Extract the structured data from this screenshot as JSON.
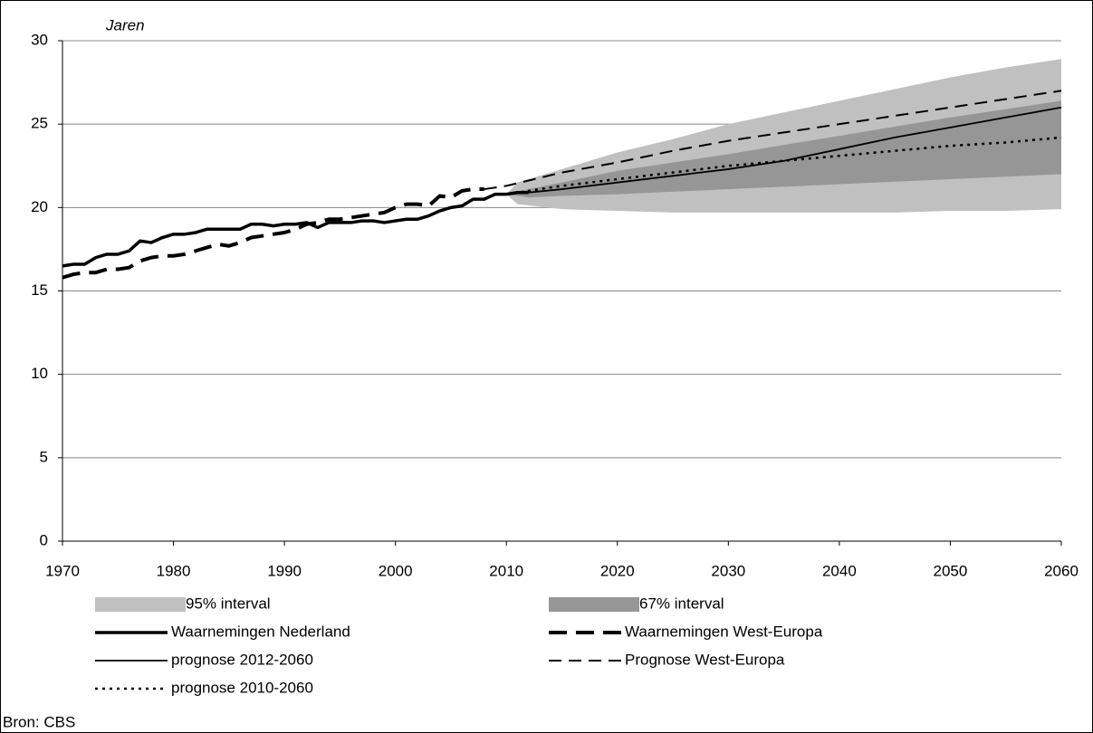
{
  "chart_data": {
    "type": "line",
    "y_axis_label": "Jaren",
    "source": "Bron: CBS",
    "xlim": [
      1970,
      2060
    ],
    "xticks": [
      1970,
      1980,
      1990,
      2000,
      2010,
      2020,
      2030,
      2040,
      2050,
      2060
    ],
    "ylim": [
      0,
      30
    ],
    "yticks": [
      0,
      5,
      10,
      15,
      20,
      25,
      30
    ],
    "grid": true,
    "series": [
      {
        "name": "95% interval",
        "kind": "band",
        "color": "#c0c0c0",
        "x": [
          2010,
          2011,
          2015,
          2020,
          2025,
          2030,
          2035,
          2040,
          2045,
          2050,
          2055,
          2060
        ],
        "lower": [
          20.8,
          20.2,
          19.9,
          19.8,
          19.7,
          19.7,
          19.7,
          19.7,
          19.7,
          19.8,
          19.8,
          19.9
        ],
        "upper": [
          20.8,
          21.5,
          22.3,
          23.3,
          24.1,
          25.0,
          25.7,
          26.4,
          27.1,
          27.8,
          28.4,
          28.9
        ]
      },
      {
        "name": "67% interval",
        "kind": "band",
        "color": "#969696",
        "x": [
          2010,
          2012,
          2015,
          2020,
          2030,
          2040,
          2050,
          2060
        ],
        "lower": [
          20.8,
          20.6,
          20.7,
          20.8,
          21.1,
          21.4,
          21.7,
          22.0
        ],
        "upper": [
          20.8,
          21.1,
          21.5,
          22.2,
          23.2,
          24.3,
          25.4,
          26.4
        ]
      },
      {
        "name": "Waarnemingen Nederland",
        "kind": "line",
        "color": "#000000",
        "line_style": "solid",
        "line_width": 3.5,
        "x": [
          1970,
          1971,
          1972,
          1973,
          1974,
          1975,
          1976,
          1977,
          1978,
          1979,
          1980,
          1981,
          1982,
          1983,
          1984,
          1985,
          1986,
          1987,
          1988,
          1989,
          1990,
          1991,
          1992,
          1993,
          1994,
          1995,
          1996,
          1997,
          1998,
          1999,
          2000,
          2001,
          2002,
          2003,
          2004,
          2005,
          2006,
          2007,
          2008,
          2009,
          2010,
          2011,
          2012
        ],
        "values": [
          16.5,
          16.6,
          16.6,
          17.0,
          17.2,
          17.2,
          17.4,
          18.0,
          17.9,
          18.2,
          18.4,
          18.4,
          18.5,
          18.7,
          18.7,
          18.7,
          18.7,
          19.0,
          19.0,
          18.9,
          19.0,
          19.0,
          19.1,
          18.8,
          19.1,
          19.1,
          19.1,
          19.2,
          19.2,
          19.1,
          19.2,
          19.3,
          19.3,
          19.5,
          19.8,
          20.0,
          20.1,
          20.5,
          20.5,
          20.8,
          20.8,
          20.9,
          20.9
        ]
      },
      {
        "name": "Waarnemingen West-Europa",
        "kind": "line",
        "color": "#000000",
        "line_style": "long-dash",
        "line_width": 4,
        "x": [
          1970,
          1971,
          1972,
          1973,
          1974,
          1975,
          1976,
          1977,
          1978,
          1979,
          1980,
          1981,
          1982,
          1983,
          1984,
          1985,
          1986,
          1987,
          1988,
          1989,
          1990,
          1991,
          1992,
          1993,
          1994,
          1995,
          1996,
          1997,
          1998,
          1999,
          2000,
          2001,
          2002,
          2003,
          2004,
          2005,
          2006,
          2007,
          2008
        ],
        "values": [
          15.8,
          16.0,
          16.1,
          16.1,
          16.3,
          16.3,
          16.4,
          16.8,
          17.0,
          17.1,
          17.1,
          17.2,
          17.4,
          17.6,
          17.8,
          17.7,
          17.9,
          18.2,
          18.3,
          18.4,
          18.5,
          18.7,
          19.0,
          19.1,
          19.3,
          19.3,
          19.4,
          19.5,
          19.6,
          19.7,
          20.0,
          20.2,
          20.2,
          20.1,
          20.7,
          20.6,
          21.0,
          21.1,
          21.1
        ]
      },
      {
        "name": "prognose 2012-2060",
        "kind": "line",
        "color": "#000000",
        "line_style": "solid",
        "line_width": 1.8,
        "x": [
          2012,
          2015,
          2020,
          2025,
          2030,
          2035,
          2040,
          2045,
          2050,
          2055,
          2060
        ],
        "values": [
          20.9,
          21.1,
          21.5,
          21.9,
          22.3,
          22.8,
          23.5,
          24.2,
          24.8,
          25.4,
          26.0
        ]
      },
      {
        "name": "Prognose West-Europa",
        "kind": "line",
        "color": "#000000",
        "line_style": "dash",
        "line_width": 2,
        "x": [
          2008,
          2010,
          2015,
          2020,
          2025,
          2030,
          2035,
          2040,
          2045,
          2050,
          2055,
          2060
        ],
        "values": [
          21.1,
          21.3,
          22.1,
          22.7,
          23.4,
          24.0,
          24.5,
          25.0,
          25.5,
          26.0,
          26.5,
          27.0
        ]
      },
      {
        "name": "prognose 2010-2060",
        "kind": "line",
        "color": "#000000",
        "line_style": "dot",
        "line_width": 2.5,
        "x": [
          2010,
          2015,
          2020,
          2025,
          2030,
          2035,
          2040,
          2045,
          2050,
          2055,
          2060
        ],
        "values": [
          20.8,
          21.3,
          21.7,
          22.1,
          22.5,
          22.8,
          23.1,
          23.4,
          23.7,
          23.9,
          24.2
        ]
      }
    ]
  }
}
